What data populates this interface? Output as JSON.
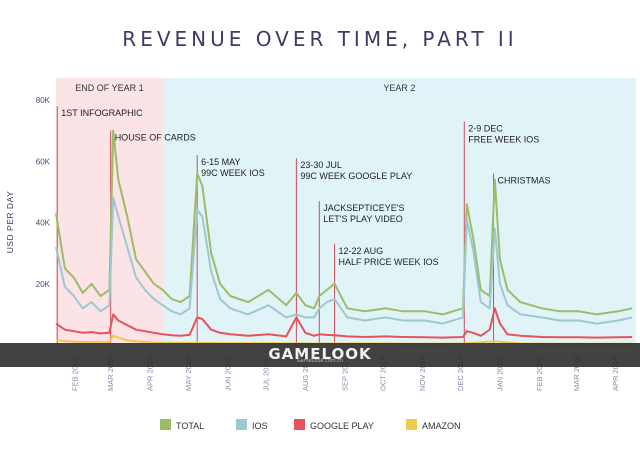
{
  "chart_data": {
    "type": "line",
    "title": "REVENUE OVER TIME, PART II",
    "ylabel": "USD PER DAY",
    "ylim": [
      0,
      80000
    ],
    "yticks": [
      {
        "value": 20000,
        "label": "20K"
      },
      {
        "value": 40000,
        "label": "40K"
      },
      {
        "value": 60000,
        "label": "60K"
      },
      {
        "value": 80000,
        "label": "80K"
      }
    ],
    "xlim": [
      "2015-01-15",
      "2016-04-15"
    ],
    "xticks": [
      {
        "date": "2015-02-01",
        "label": "FEB 2015"
      },
      {
        "date": "2015-03-01",
        "label": "MAR 2015"
      },
      {
        "date": "2015-04-01",
        "label": "APR 2015"
      },
      {
        "date": "2015-05-01",
        "label": "MAY 2015"
      },
      {
        "date": "2015-06-01",
        "label": "JUN 2015"
      },
      {
        "date": "2015-07-01",
        "label": "JUL 2015"
      },
      {
        "date": "2015-08-01",
        "label": "AUG 2015"
      },
      {
        "date": "2015-09-01",
        "label": "SEP 2015"
      },
      {
        "date": "2015-10-01",
        "label": "OCT 2015"
      },
      {
        "date": "2015-11-01",
        "label": "NOV 2015"
      },
      {
        "date": "2015-12-01",
        "label": "DEC 2015"
      },
      {
        "date": "2016-01-01",
        "label": "JAN 2016"
      },
      {
        "date": "2016-02-01",
        "label": "FEB 2016"
      },
      {
        "date": "2016-03-01",
        "label": "MAR 2016"
      },
      {
        "date": "2016-04-01",
        "label": "APR 2016"
      }
    ],
    "periods": [
      {
        "label": "END OF YEAR 1",
        "start": "2015-01-15",
        "end": "2015-04-09",
        "color": "#fbe3e6"
      },
      {
        "label": "YEAR 2",
        "start": "2015-04-09",
        "end": "2016-04-15",
        "color": "#e0f3f7"
      }
    ],
    "annotations": [
      {
        "date": "2015-01-16",
        "lines": [
          "1ST INFOGRAPHIC"
        ],
        "value": 78000
      },
      {
        "date": "2015-02-27",
        "lines": [
          "HOUSE OF CARDS"
        ],
        "value": 70000
      },
      {
        "date": "2015-05-06",
        "lines": [
          "6-15 MAY",
          "99C WEEK IOS"
        ],
        "value": 62000
      },
      {
        "date": "2015-07-23",
        "lines": [
          "23-30 JUL",
          "99C WEEK GOOGLE PLAY"
        ],
        "value": 61000
      },
      {
        "date": "2015-08-10",
        "lines": [
          "JACKSEPTICEYE'S",
          "LET'S PLAY VIDEO"
        ],
        "value": 47000
      },
      {
        "date": "2015-08-22",
        "lines": [
          "12-22 AUG",
          "HALF PRICE WEEK IOS"
        ],
        "value": 33000
      },
      {
        "date": "2015-12-02",
        "lines": [
          "2-9 DEC",
          "FREE WEEK IOS"
        ],
        "value": 73000
      },
      {
        "date": "2015-12-25",
        "lines": [
          "CHRISTMAS"
        ],
        "value": 56000
      }
    ],
    "series": [
      {
        "name": "TOTAL",
        "color": "#9cbc6a",
        "points": [
          [
            "2015-01-15",
            43000
          ],
          [
            "2015-01-22",
            25000
          ],
          [
            "2015-01-29",
            22000
          ],
          [
            "2015-02-05",
            17000
          ],
          [
            "2015-02-12",
            20000
          ],
          [
            "2015-02-19",
            16000
          ],
          [
            "2015-02-26",
            18000
          ],
          [
            "2015-03-01",
            70000
          ],
          [
            "2015-03-05",
            54000
          ],
          [
            "2015-03-12",
            42000
          ],
          [
            "2015-03-19",
            28000
          ],
          [
            "2015-03-26",
            24000
          ],
          [
            "2015-04-02",
            20000
          ],
          [
            "2015-04-09",
            18000
          ],
          [
            "2015-04-16",
            15000
          ],
          [
            "2015-04-23",
            14000
          ],
          [
            "2015-04-30",
            16000
          ],
          [
            "2015-05-06",
            56000
          ],
          [
            "2015-05-10",
            52000
          ],
          [
            "2015-05-17",
            30000
          ],
          [
            "2015-05-24",
            20000
          ],
          [
            "2015-06-01",
            16000
          ],
          [
            "2015-06-15",
            14000
          ],
          [
            "2015-07-01",
            18000
          ],
          [
            "2015-07-15",
            13000
          ],
          [
            "2015-07-23",
            17000
          ],
          [
            "2015-07-30",
            13000
          ],
          [
            "2015-08-06",
            12000
          ],
          [
            "2015-08-10",
            16000
          ],
          [
            "2015-08-16",
            18000
          ],
          [
            "2015-08-22",
            20000
          ],
          [
            "2015-09-01",
            12000
          ],
          [
            "2015-09-15",
            11000
          ],
          [
            "2015-10-01",
            12000
          ],
          [
            "2015-10-15",
            11000
          ],
          [
            "2015-11-01",
            11000
          ],
          [
            "2015-11-15",
            10000
          ],
          [
            "2015-12-01",
            12000
          ],
          [
            "2015-12-04",
            46000
          ],
          [
            "2015-12-09",
            35000
          ],
          [
            "2015-12-15",
            18000
          ],
          [
            "2015-12-22",
            16000
          ],
          [
            "2015-12-26",
            54000
          ],
          [
            "2015-12-30",
            28000
          ],
          [
            "2016-01-05",
            18000
          ],
          [
            "2016-01-15",
            14000
          ],
          [
            "2016-02-01",
            12000
          ],
          [
            "2016-02-15",
            11000
          ],
          [
            "2016-03-01",
            11000
          ],
          [
            "2016-03-15",
            10000
          ],
          [
            "2016-04-01",
            11000
          ],
          [
            "2016-04-12",
            12000
          ]
        ]
      },
      {
        "name": "IOS",
        "color": "#9dc8d0",
        "points": [
          [
            "2015-01-15",
            32000
          ],
          [
            "2015-01-22",
            19000
          ],
          [
            "2015-01-29",
            16000
          ],
          [
            "2015-02-05",
            12000
          ],
          [
            "2015-02-12",
            14000
          ],
          [
            "2015-02-19",
            11000
          ],
          [
            "2015-02-26",
            13000
          ],
          [
            "2015-03-01",
            48000
          ],
          [
            "2015-03-05",
            42000
          ],
          [
            "2015-03-12",
            32000
          ],
          [
            "2015-03-19",
            22000
          ],
          [
            "2015-03-26",
            18000
          ],
          [
            "2015-04-02",
            15000
          ],
          [
            "2015-04-09",
            13000
          ],
          [
            "2015-04-16",
            11000
          ],
          [
            "2015-04-23",
            10000
          ],
          [
            "2015-04-30",
            12000
          ],
          [
            "2015-05-06",
            44000
          ],
          [
            "2015-05-10",
            42000
          ],
          [
            "2015-05-17",
            24000
          ],
          [
            "2015-05-24",
            15000
          ],
          [
            "2015-06-01",
            12000
          ],
          [
            "2015-06-15",
            10000
          ],
          [
            "2015-07-01",
            13000
          ],
          [
            "2015-07-15",
            9000
          ],
          [
            "2015-07-23",
            10000
          ],
          [
            "2015-07-30",
            9000
          ],
          [
            "2015-08-06",
            9000
          ],
          [
            "2015-08-10",
            12000
          ],
          [
            "2015-08-16",
            14000
          ],
          [
            "2015-08-22",
            15000
          ],
          [
            "2015-09-01",
            9000
          ],
          [
            "2015-09-15",
            8000
          ],
          [
            "2015-10-01",
            9000
          ],
          [
            "2015-10-15",
            8000
          ],
          [
            "2015-11-01",
            8000
          ],
          [
            "2015-11-15",
            7000
          ],
          [
            "2015-12-01",
            9000
          ],
          [
            "2015-12-04",
            41000
          ],
          [
            "2015-12-09",
            31000
          ],
          [
            "2015-12-15",
            14000
          ],
          [
            "2015-12-22",
            12000
          ],
          [
            "2015-12-26",
            38000
          ],
          [
            "2015-12-30",
            20000
          ],
          [
            "2016-01-05",
            13000
          ],
          [
            "2016-01-15",
            10000
          ],
          [
            "2016-02-01",
            9000
          ],
          [
            "2016-02-15",
            8000
          ],
          [
            "2016-03-01",
            8000
          ],
          [
            "2016-03-15",
            7000
          ],
          [
            "2016-04-01",
            8000
          ],
          [
            "2016-04-12",
            9000
          ]
        ]
      },
      {
        "name": "GOOGLE PLAY",
        "color": "#e8525c",
        "points": [
          [
            "2015-01-15",
            7000
          ],
          [
            "2015-01-22",
            5000
          ],
          [
            "2015-01-29",
            4500
          ],
          [
            "2015-02-05",
            4000
          ],
          [
            "2015-02-12",
            4200
          ],
          [
            "2015-02-19",
            3800
          ],
          [
            "2015-02-26",
            4000
          ],
          [
            "2015-03-01",
            10000
          ],
          [
            "2015-03-05",
            8000
          ],
          [
            "2015-03-12",
            6500
          ],
          [
            "2015-03-19",
            5000
          ],
          [
            "2015-03-26",
            4500
          ],
          [
            "2015-04-02",
            4000
          ],
          [
            "2015-04-09",
            3500
          ],
          [
            "2015-04-16",
            3200
          ],
          [
            "2015-04-23",
            3000
          ],
          [
            "2015-04-30",
            3300
          ],
          [
            "2015-05-06",
            9000
          ],
          [
            "2015-05-10",
            8500
          ],
          [
            "2015-05-17",
            5000
          ],
          [
            "2015-05-24",
            4000
          ],
          [
            "2015-06-01",
            3500
          ],
          [
            "2015-06-15",
            3000
          ],
          [
            "2015-07-01",
            3500
          ],
          [
            "2015-07-15",
            2800
          ],
          [
            "2015-07-23",
            9000
          ],
          [
            "2015-07-30",
            4000
          ],
          [
            "2015-08-06",
            3000
          ],
          [
            "2015-08-10",
            3500
          ],
          [
            "2015-08-16",
            3300
          ],
          [
            "2015-08-22",
            3200
          ],
          [
            "2015-09-01",
            2800
          ],
          [
            "2015-09-15",
            2600
          ],
          [
            "2015-10-01",
            2800
          ],
          [
            "2015-10-15",
            2600
          ],
          [
            "2015-11-01",
            2500
          ],
          [
            "2015-11-15",
            2400
          ],
          [
            "2015-12-01",
            2600
          ],
          [
            "2015-12-04",
            4500
          ],
          [
            "2015-12-09",
            4000
          ],
          [
            "2015-12-15",
            3000
          ],
          [
            "2015-12-22",
            5000
          ],
          [
            "2015-12-26",
            12000
          ],
          [
            "2015-12-30",
            7000
          ],
          [
            "2016-01-05",
            3500
          ],
          [
            "2016-01-15",
            3000
          ],
          [
            "2016-02-01",
            2600
          ],
          [
            "2016-02-15",
            2500
          ],
          [
            "2016-03-01",
            2500
          ],
          [
            "2016-03-15",
            2400
          ],
          [
            "2016-04-01",
            2500
          ],
          [
            "2016-04-12",
            2600
          ]
        ]
      },
      {
        "name": "AMAZON",
        "color": "#f2c94c",
        "points": [
          [
            "2015-01-15",
            1500
          ],
          [
            "2015-02-01",
            1000
          ],
          [
            "2015-02-26",
            900
          ],
          [
            "2015-03-01",
            3000
          ],
          [
            "2015-03-12",
            1500
          ],
          [
            "2015-04-01",
            800
          ],
          [
            "2015-05-01",
            700
          ],
          [
            "2015-06-01",
            600
          ],
          [
            "2015-07-01",
            600
          ],
          [
            "2015-08-01",
            500
          ],
          [
            "2015-09-01",
            500
          ],
          [
            "2015-10-01",
            500
          ],
          [
            "2015-11-01",
            400
          ],
          [
            "2015-12-01",
            500
          ],
          [
            "2015-12-26",
            1200
          ],
          [
            "2016-01-15",
            500
          ],
          [
            "2016-02-15",
            400
          ],
          [
            "2016-03-15",
            400
          ],
          [
            "2016-04-12",
            400
          ]
        ]
      }
    ],
    "legend_position": "bottom"
  },
  "watermark": {
    "text": "GAMELOOK",
    "sub": "GameLook.com.cn"
  }
}
